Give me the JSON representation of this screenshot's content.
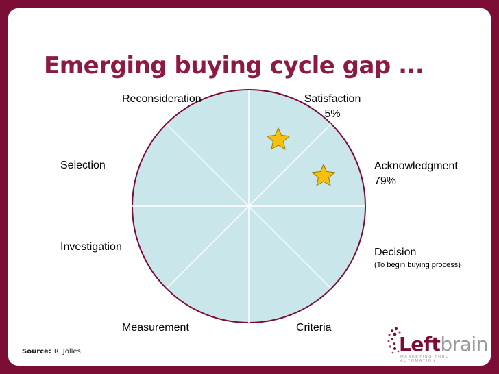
{
  "slide": {
    "title": "Emerging buying cycle gap ...",
    "source_label": "Source:",
    "source_value": "R. Jolles"
  },
  "stages": {
    "reconsideration": "Reconsideration",
    "satisfaction": "Satisfaction",
    "satisfaction_pct": "5%",
    "acknowledgment": "Acknowledgment",
    "acknowledgment_pct": "79%",
    "decision": "Decision",
    "decision_note": "(To begin buying process)",
    "criteria": "Criteria",
    "measurement": "Measurement",
    "investigation": "Investigation",
    "selection": "Selection"
  },
  "logo": {
    "word_left": "Left",
    "word_right": "brain",
    "tagline": "MARKETING THRU AUTOMATION"
  },
  "colors": {
    "background": "#7a0c36",
    "title": "#8b1a45",
    "circle_fill": "#c9e6ea",
    "circle_stroke": "#7a0c36",
    "star_fill": "#f4c20d"
  }
}
